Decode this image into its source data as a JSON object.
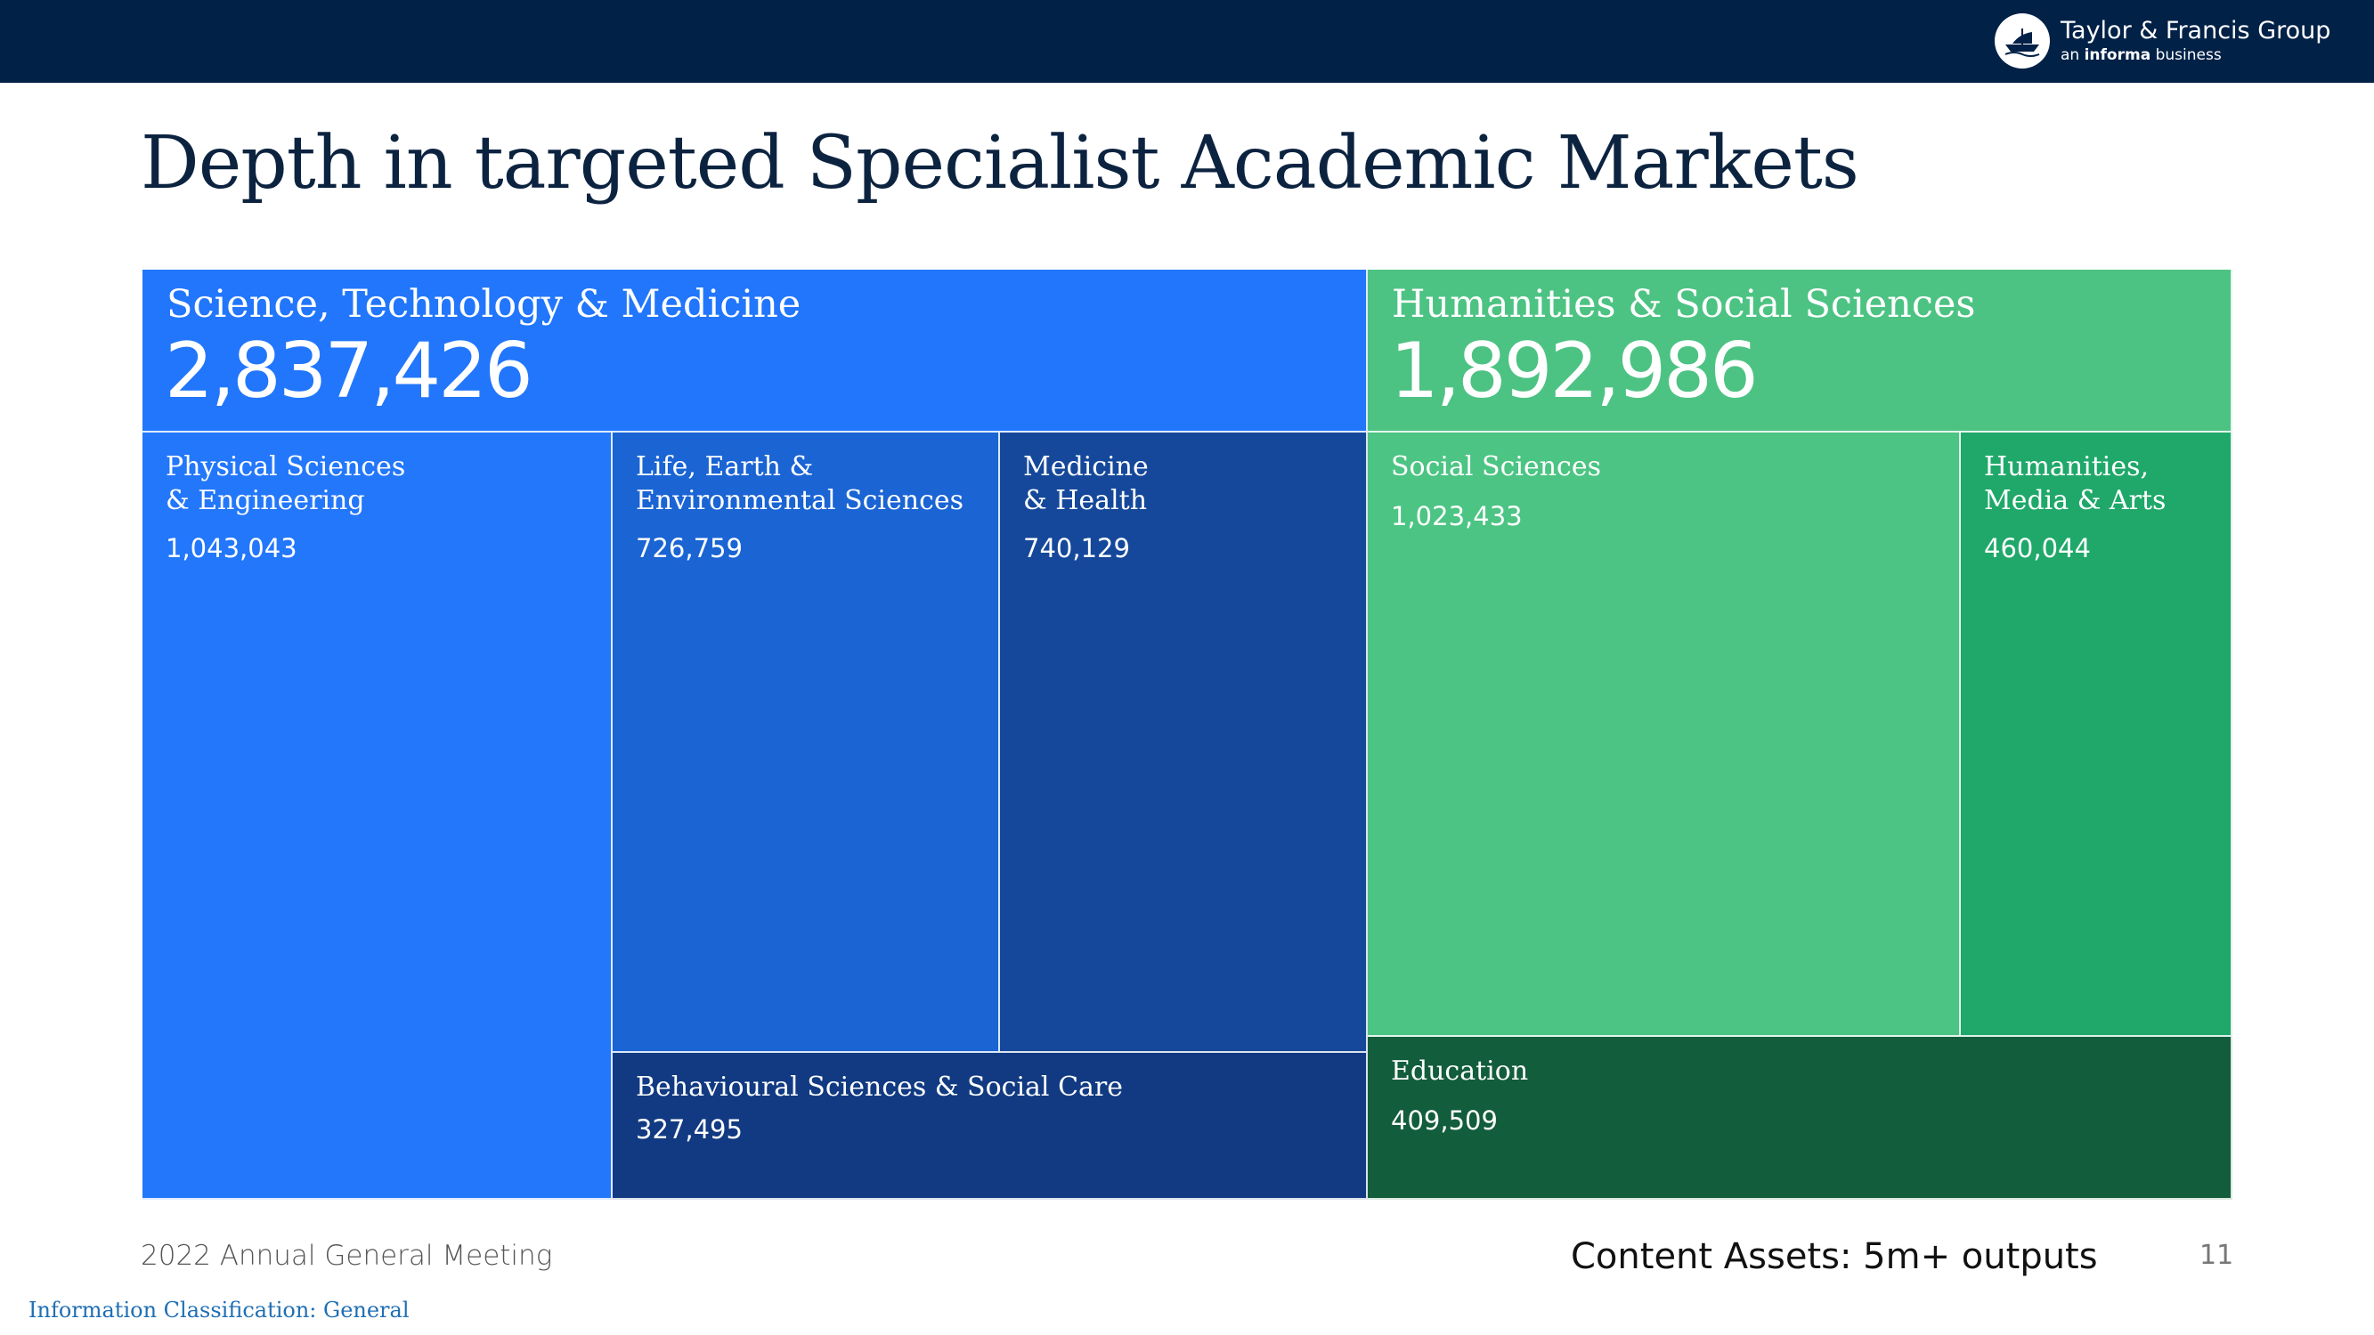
{
  "header": {
    "company": "Taylor & Francis Group",
    "tag_prefix": "an",
    "tag_brand": "informa",
    "tag_suffix": "business"
  },
  "slide": {
    "title": "Depth in targeted Specialist Academic Markets"
  },
  "chart_data": {
    "type": "treemap",
    "groups": [
      {
        "name": "Science, Technology & Medicine",
        "total": "2,837,426",
        "total_value": 2837426,
        "color": "#2176fc",
        "children": [
          {
            "name": "Physical Sciences\n& Engineering",
            "display": "1,043,043",
            "value": 1043043,
            "color": "#2377fb"
          },
          {
            "name": "Life, Earth &\nEnvironmental Sciences",
            "display": "726,759",
            "value": 726759,
            "color": "#1a64d4"
          },
          {
            "name": "Medicine\n& Health",
            "display": "740,129",
            "value": 740129,
            "color": "#15489a"
          },
          {
            "name": "Behavioural Sciences & Social Care",
            "display": "327,495",
            "value": 327495,
            "color": "#113a82"
          }
        ]
      },
      {
        "name": "Humanities & Social Sciences",
        "total": "1,892,986",
        "total_value": 1892986,
        "color": "#4dc383",
        "children": [
          {
            "name": "Social Sciences",
            "display": "1,023,433",
            "value": 1023433,
            "color": "#4cc483"
          },
          {
            "name": "Humanities,\nMedia & Arts",
            "display": "460,044",
            "value": 460044,
            "color": "#1fa86a"
          },
          {
            "name": "Education",
            "display": "409,509",
            "value": 409509,
            "color": "#125d3b"
          }
        ]
      }
    ]
  },
  "footer": {
    "meeting": "2022 Annual General Meeting",
    "content_assets": "Content Assets: 5m+ outputs",
    "page_number": "11",
    "classification": "Information Classification: General"
  },
  "colors": {
    "topbar": "#012147",
    "title": "#0c2340"
  }
}
